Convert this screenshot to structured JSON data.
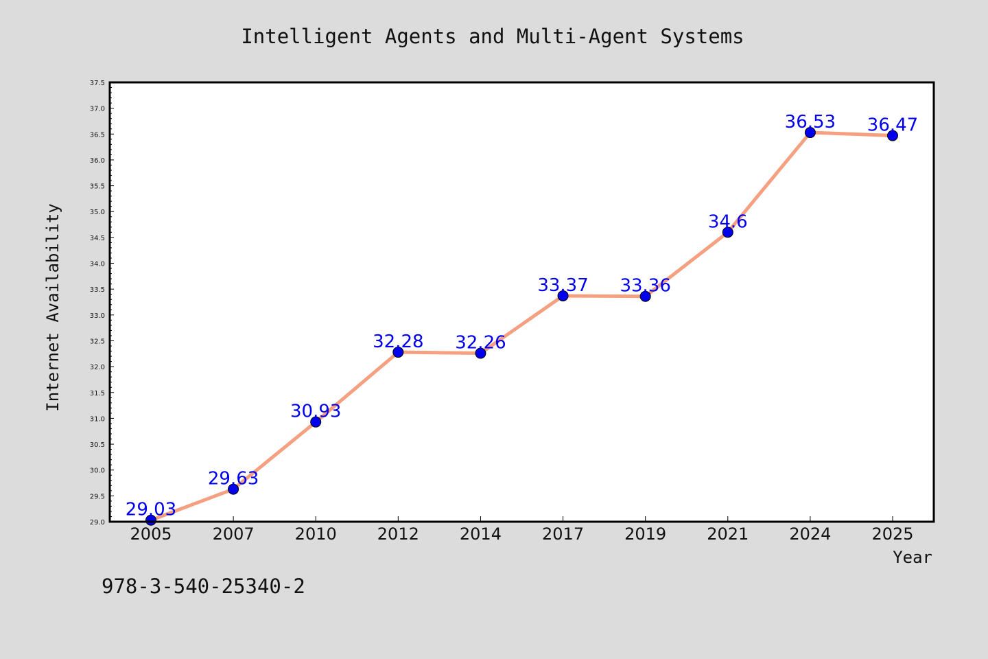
{
  "chart_data": {
    "type": "line",
    "title": "Intelligent Agents and Multi-Agent Systems",
    "xlabel": "Year",
    "ylabel": "Internet Availability",
    "categories": [
      "2005",
      "2007",
      "2010",
      "2012",
      "2014",
      "2017",
      "2019",
      "2021",
      "2024",
      "2025"
    ],
    "series": [
      {
        "values": [
          29.03,
          29.63,
          30.93,
          32.28,
          32.26,
          33.37,
          33.36,
          34.6,
          36.53,
          36.47
        ],
        "line_color": "#f4a081",
        "marker_color": "#0000ee",
        "label_color": "#0000ee"
      }
    ],
    "data_labels": [
      "29.03",
      "29.63",
      "30.93",
      "32.28",
      "32.26",
      "33.37",
      "33.36",
      "34.6",
      "36.53",
      "36.47"
    ],
    "ylim": [
      29.0,
      37.5
    ],
    "yticks": [
      29.0,
      29.5,
      30.0,
      30.5,
      31.0,
      31.5,
      32.0,
      32.5,
      33.0,
      33.5,
      34.0,
      34.5,
      35.0,
      35.5,
      36.0,
      36.5,
      37.0,
      37.5
    ],
    "ytick_labels": [
      "29.0",
      "29.5",
      "30.0",
      "30.5",
      "31.0",
      "31.5",
      "32.0",
      "32.5",
      "33.0",
      "33.5",
      "34.0",
      "34.5",
      "35.0",
      "35.5",
      "36.0",
      "36.5",
      "37.0",
      "37.5"
    ],
    "grid": false,
    "legend": "none"
  },
  "annotation": "978-3-540-25340-2",
  "colors": {
    "background": "#dcdcdc",
    "plot_area": "#ffffff",
    "frame": "#000000"
  }
}
